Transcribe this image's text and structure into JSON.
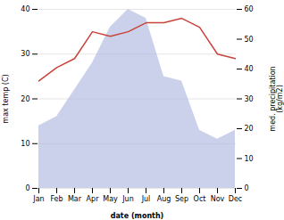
{
  "chart_data": {
    "type": "line",
    "xlabel": "date (month)",
    "ylabel": "max temp (C)",
    "y2label": "med. precipitation\n(kg/m2)",
    "categories": [
      "Jan",
      "Feb",
      "Mar",
      "Apr",
      "May",
      "Jun",
      "Jul",
      "Aug",
      "Sep",
      "Oct",
      "Nov",
      "Dec"
    ],
    "series": [
      {
        "type": "area",
        "color": "#b0b8e0",
        "values": [
          14,
          16,
          22,
          28,
          36,
          40,
          38,
          25,
          24,
          13,
          11,
          13
        ]
      },
      {
        "type": "line",
        "color": "#c9433a",
        "values": [
          24,
          27,
          29,
          35,
          34,
          35,
          37,
          37,
          38,
          36,
          30,
          29
        ]
      }
    ],
    "ylim": [
      0,
      40
    ],
    "yticks": [
      0,
      10,
      20,
      30,
      40
    ],
    "y2lim": [
      0,
      60
    ],
    "y2ticks": [
      0,
      10,
      20,
      30,
      40,
      50,
      60
    ],
    "grid": true
  }
}
